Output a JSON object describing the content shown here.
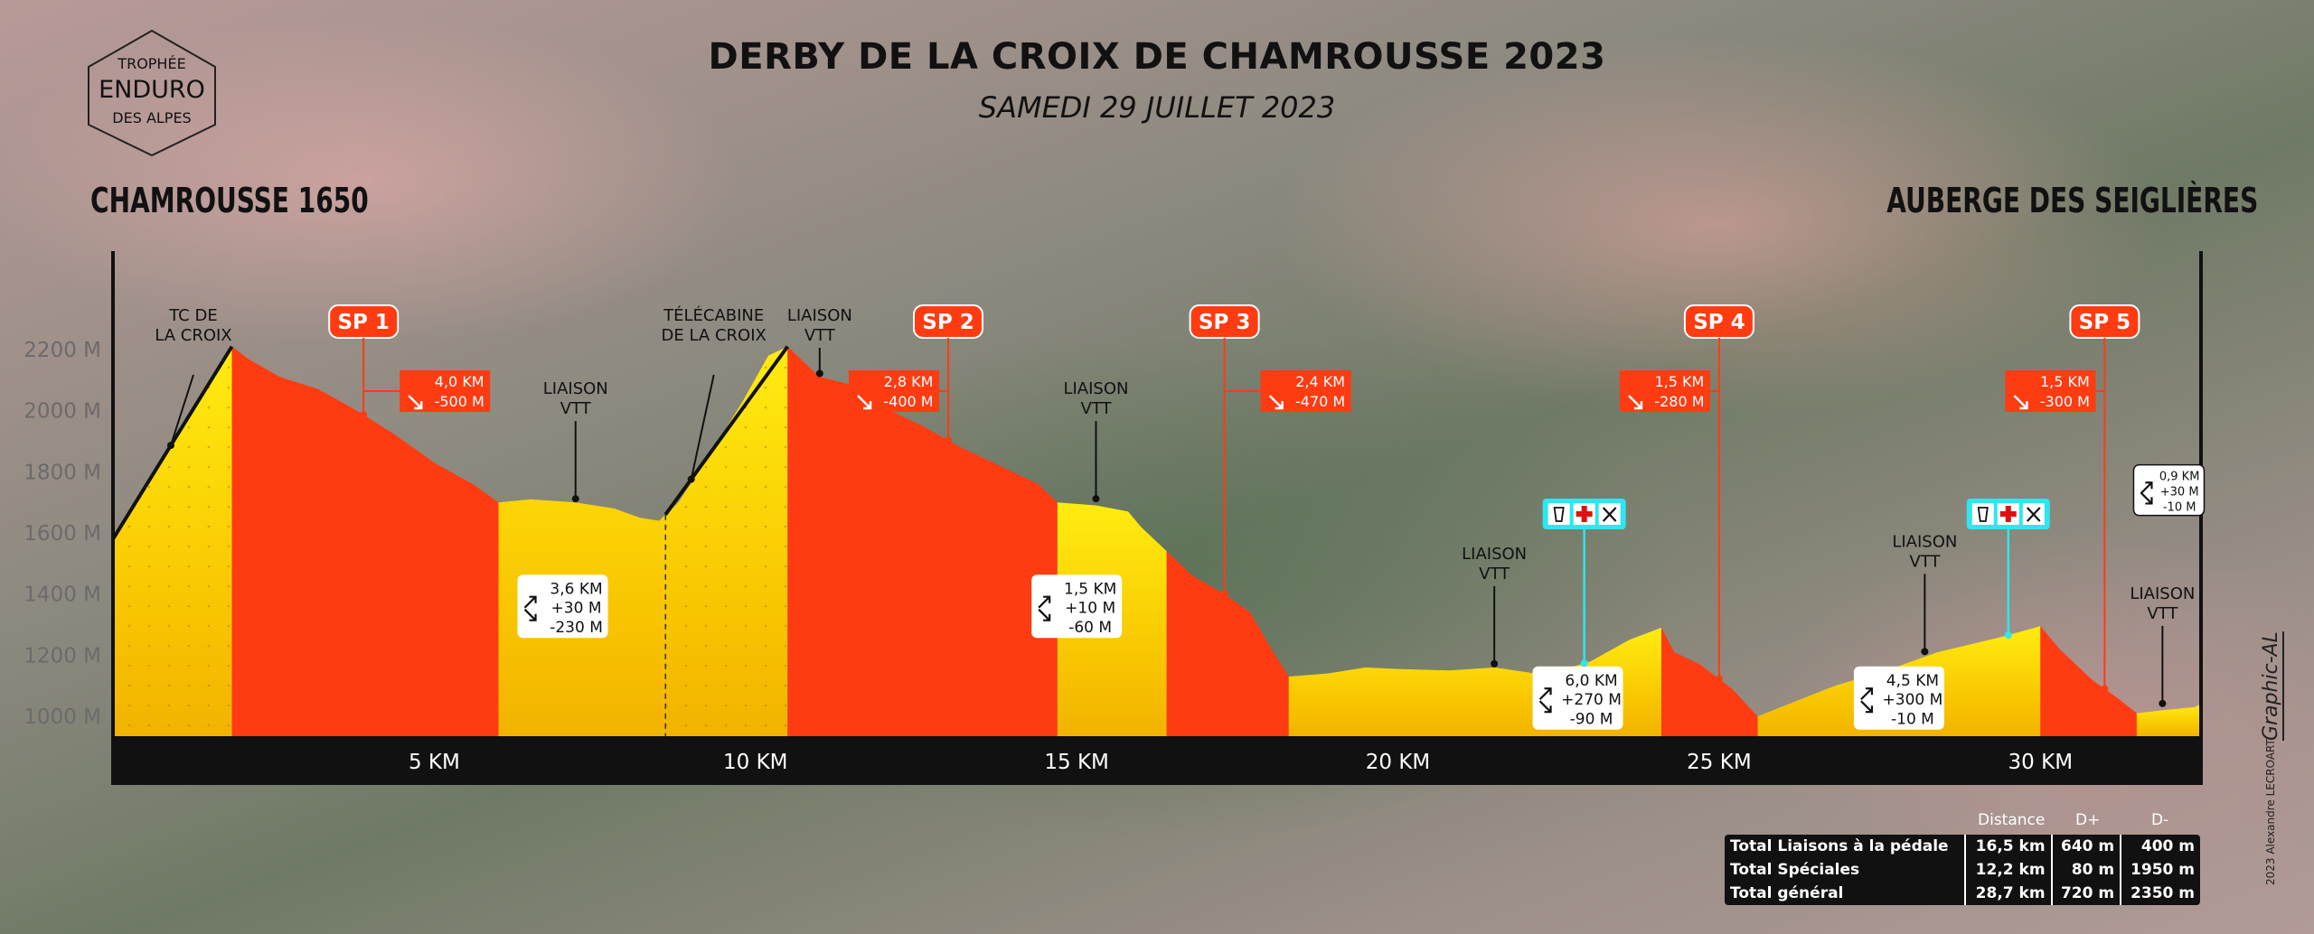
{
  "logo": {
    "line1": "TROPHÉE",
    "line2": "ENDURO",
    "line3": "DES ALPES"
  },
  "header": {
    "title": "DERBY DE LA CROIX DE CHAMROUSSE 2023",
    "subtitle": "SAMEDI 29 JUILLET 2023"
  },
  "places": {
    "start": "CHAMROUSSE 1650",
    "end": "AUBERGE DES SEIGLIÈRES"
  },
  "chart_data": {
    "type": "area",
    "xlabel": "",
    "ylabel": "",
    "xlim": [
      0,
      32.5
    ],
    "ylim": [
      900,
      2300
    ],
    "y_ticks": [
      1000,
      1200,
      1400,
      1600,
      1800,
      2000,
      2200
    ],
    "y_tick_labels": [
      "1000 M",
      "1200 M",
      "1400 M",
      "1600 M",
      "1800 M",
      "2000 M",
      "2200 M"
    ],
    "x_ticks": [
      5,
      10,
      15,
      20,
      25,
      30
    ],
    "x_tick_labels": [
      "5 KM",
      "10 KM",
      "15 KM",
      "20 KM",
      "25 KM",
      "30 KM"
    ],
    "profile": [
      [
        0.0,
        1580
      ],
      [
        1.85,
        2210
      ],
      [
        2.1,
        2170
      ],
      [
        2.6,
        2110
      ],
      [
        3.2,
        2070
      ],
      [
        3.8,
        2000
      ],
      [
        4.4,
        1920
      ],
      [
        5.0,
        1830
      ],
      [
        5.6,
        1760
      ],
      [
        6.0,
        1700
      ],
      [
        6.5,
        1710
      ],
      [
        7.2,
        1700
      ],
      [
        7.8,
        1680
      ],
      [
        8.2,
        1650
      ],
      [
        8.5,
        1640
      ],
      [
        8.8,
        1700
      ],
      [
        9.3,
        1860
      ],
      [
        9.8,
        2030
      ],
      [
        10.2,
        2180
      ],
      [
        10.5,
        2210
      ],
      [
        11.0,
        2110
      ],
      [
        11.4,
        2090
      ],
      [
        12.0,
        2010
      ],
      [
        12.6,
        1950
      ],
      [
        13.2,
        1880
      ],
      [
        13.8,
        1820
      ],
      [
        14.4,
        1760
      ],
      [
        14.7,
        1700
      ],
      [
        15.3,
        1690
      ],
      [
        15.8,
        1670
      ],
      [
        16.0,
        1620
      ],
      [
        16.4,
        1540
      ],
      [
        16.8,
        1460
      ],
      [
        17.3,
        1400
      ],
      [
        17.7,
        1340
      ],
      [
        18.0,
        1230
      ],
      [
        18.3,
        1130
      ],
      [
        18.9,
        1140
      ],
      [
        19.5,
        1160
      ],
      [
        20.0,
        1155
      ],
      [
        20.8,
        1150
      ],
      [
        21.5,
        1160
      ],
      [
        22.3,
        1135
      ],
      [
        23.0,
        1180
      ],
      [
        23.6,
        1250
      ],
      [
        24.1,
        1290
      ],
      [
        24.3,
        1210
      ],
      [
        24.7,
        1170
      ],
      [
        25.2,
        1090
      ],
      [
        25.6,
        1000
      ],
      [
        26.2,
        1050
      ],
      [
        26.8,
        1100
      ],
      [
        27.6,
        1150
      ],
      [
        28.4,
        1210
      ],
      [
        29.4,
        1260
      ],
      [
        30.0,
        1295
      ],
      [
        30.3,
        1220
      ],
      [
        30.8,
        1120
      ],
      [
        31.2,
        1060
      ],
      [
        31.5,
        1010
      ],
      [
        31.9,
        1020
      ],
      [
        32.4,
        1030
      ],
      [
        32.5,
        1040
      ]
    ],
    "segments": [
      {
        "type": "liaison",
        "from": 0.0,
        "to": 1.85
      },
      {
        "type": "special",
        "name": "SP 1",
        "from": 1.85,
        "to": 6.0
      },
      {
        "type": "liaison",
        "from": 6.0,
        "to": 10.5
      },
      {
        "type": "special",
        "name": "SP 2",
        "from": 10.5,
        "to": 14.7
      },
      {
        "type": "liaison",
        "from": 14.7,
        "to": 16.4
      },
      {
        "type": "special",
        "name": "SP 3",
        "from": 16.4,
        "to": 18.3
      },
      {
        "type": "liaison",
        "from": 18.3,
        "to": 24.1
      },
      {
        "type": "special",
        "name": "SP 4",
        "from": 24.1,
        "to": 25.6
      },
      {
        "type": "liaison",
        "from": 25.6,
        "to": 30.0
      },
      {
        "type": "special",
        "name": "SP 5",
        "from": 30.0,
        "to": 31.5
      },
      {
        "type": "liaison",
        "from": 31.5,
        "to": 32.5
      }
    ],
    "lifts": [
      {
        "from": 0.0,
        "to": 1.85,
        "label": [
          "TC DE",
          "LA CROIX"
        ],
        "at": 0.9
      },
      {
        "from": 8.6,
        "to": 10.5,
        "label": [
          "TÉLÉCABINE",
          "DE LA CROIX"
        ],
        "at": 9.0
      }
    ],
    "special_labels": [
      {
        "name": "SP 1",
        "x": 3.9,
        "distance": "4,0 KM",
        "descent": "-500 M",
        "tag_x": 4.0
      },
      {
        "name": "SP 2",
        "x": 13.0,
        "distance": "2,8 KM",
        "descent": "-400 M",
        "tag_x": 12.9
      },
      {
        "name": "SP 3",
        "x": 17.3,
        "distance": "2,4 KM",
        "descent": "-470 M",
        "tag_x": 17.3
      },
      {
        "name": "SP 4",
        "x": 25.0,
        "distance": "1,5 KM",
        "descent": "-280 M",
        "tag_x": 24.6
      },
      {
        "name": "SP 5",
        "x": 31.0,
        "distance": "1,5 KM",
        "descent": "-300 M",
        "tag_x": 30.6
      }
    ],
    "liaison_labels": [
      {
        "x": 7.2,
        "text": [
          "LIAISON",
          "VTT"
        ],
        "pin_elev": 1700
      },
      {
        "x": 11.0,
        "text": [
          "LIAISON",
          "VTT"
        ],
        "pin_elev": 2110,
        "top": true
      },
      {
        "x": 15.3,
        "text": [
          "LIAISON",
          "VTT"
        ],
        "pin_elev": 1700
      },
      {
        "x": 21.5,
        "text": [
          "LIAISON",
          "VTT"
        ],
        "pin_elev": 1160
      },
      {
        "x": 28.2,
        "text": [
          "LIAISON",
          "VTT"
        ],
        "pin_elev": 1200
      },
      {
        "x": 31.9,
        "text": [
          "LIAISON",
          "VTT"
        ],
        "pin_elev": 1030
      }
    ],
    "liaison_stats": [
      {
        "x": 7.0,
        "elev": 1360,
        "distance": "3,6 KM",
        "up": "+30 M",
        "down": "-230 M"
      },
      {
        "x": 15.0,
        "elev": 1360,
        "distance": "1,5 KM",
        "up": "+10 M",
        "down": "-60 M"
      },
      {
        "x": 22.8,
        "elev": 1060,
        "distance": "6,0 KM",
        "up": "+270 M",
        "down": "-90 M"
      },
      {
        "x": 27.8,
        "elev": 1060,
        "distance": "4,5 KM",
        "up": "+300 M",
        "down": "-10 M"
      },
      {
        "x": 32.0,
        "elev": 1740,
        "distance": "0,9 KM",
        "up": "+30 M",
        "down": "-10 M",
        "small": true
      }
    ],
    "aid_stations": [
      {
        "x": 22.9,
        "elev": 1510,
        "services": [
          "water",
          "first-aid",
          "tools"
        ]
      },
      {
        "x": 29.5,
        "elev": 1510,
        "services": [
          "water",
          "first-aid",
          "tools"
        ]
      }
    ],
    "dashed_lines": [
      8.6
    ],
    "colors": {
      "special": "#ff3b12",
      "liaison_top": "#ffe500",
      "liaison_bottom": "#f4b800",
      "axis_bar": "#111111",
      "aid": "#2ee6ef"
    }
  },
  "totals": {
    "headers": [
      "Distance",
      "D+",
      "D-"
    ],
    "rows": [
      {
        "label": "Total Liaisons à la pédale",
        "distance": "16,5 km",
        "up": "640 m",
        "down": "400 m"
      },
      {
        "label": "Total Spéciales",
        "distance": "12,2 km",
        "up": "80 m",
        "down": "1950 m"
      },
      {
        "label": "Total général",
        "distance": "28,7 km",
        "up": "720 m",
        "down": "2350 m"
      }
    ]
  },
  "credit": "2023 Alexandre LECROART",
  "signature": "Graphic-AL"
}
